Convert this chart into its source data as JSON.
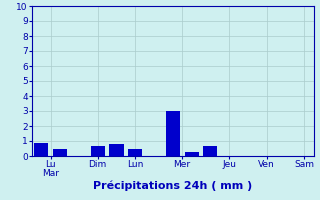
{
  "values": [
    0.9,
    0.5,
    0,
    0.7,
    0.8,
    0.5,
    0,
    3.0,
    0.3,
    0.7,
    0,
    0,
    0,
    0,
    0
  ],
  "n_bars": 15,
  "day_labels": [
    "Lu\nMar",
    "Dim",
    "Lun",
    "Mer",
    "Jeu",
    "Ven",
    "Sam"
  ],
  "day_tick_positions": [
    0.5,
    3,
    5,
    7.5,
    10,
    12,
    14
  ],
  "bar_color": "#0000cc",
  "background_color": "#cff0f0",
  "grid_color": "#aacccc",
  "xlabel": "Précipitations 24h ( mm )",
  "xlabel_color": "#0000bb",
  "xlabel_fontsize": 8,
  "ylim": [
    0,
    10
  ],
  "yticks": [
    0,
    1,
    2,
    3,
    4,
    5,
    6,
    7,
    8,
    9,
    10
  ],
  "tick_color": "#0000aa",
  "tick_fontsize": 6.5,
  "axis_color": "#0000aa",
  "figsize": [
    3.2,
    2.0
  ],
  "dpi": 100
}
